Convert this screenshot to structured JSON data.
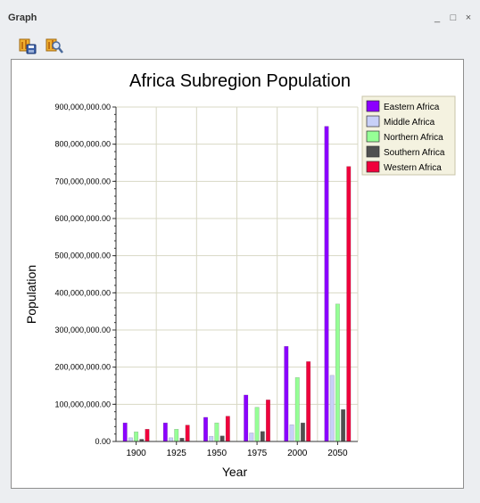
{
  "window": {
    "title": "Graph",
    "minimize_label": "_",
    "restore_label": "□",
    "close_label": "×"
  },
  "toolbar": {
    "items": [
      {
        "icon": "save-chart-icon"
      },
      {
        "icon": "chart-properties-icon"
      }
    ]
  },
  "chart_data": {
    "type": "bar",
    "title": "Africa Subregion Population",
    "xlabel": "Year",
    "ylabel": "Population",
    "categories": [
      "1900",
      "1925",
      "1950",
      "1975",
      "2000",
      "2050"
    ],
    "ylim": [
      0,
      900000000
    ],
    "yticks": [
      "0.00",
      "100,000,000.00",
      "200,000,000.00",
      "300,000,000.00",
      "400,000,000.00",
      "500,000,000.00",
      "600,000,000.00",
      "700,000,000.00",
      "800,000,000.00",
      "900,000,000.00"
    ],
    "grid": true,
    "legend_position": "top-right",
    "series": [
      {
        "name": "Eastern Africa",
        "color": "#8b00ff",
        "values": [
          50000000,
          50000000,
          65000000,
          125000000,
          256000000,
          848000000
        ]
      },
      {
        "name": "Middle Africa",
        "color": "#c8d0f8",
        "values": [
          10000000,
          10000000,
          14000000,
          23000000,
          45000000,
          178000000
        ]
      },
      {
        "name": "Northern Africa",
        "color": "#96ff96",
        "values": [
          26000000,
          33000000,
          50000000,
          92000000,
          172000000,
          370000000
        ]
      },
      {
        "name": "Southern Africa",
        "color": "#505050",
        "values": [
          6000000,
          9000000,
          15000000,
          27000000,
          50000000,
          86000000
        ]
      },
      {
        "name": "Western Africa",
        "color": "#f0003c",
        "values": [
          33000000,
          44000000,
          68000000,
          112000000,
          215000000,
          740000000
        ]
      }
    ]
  }
}
